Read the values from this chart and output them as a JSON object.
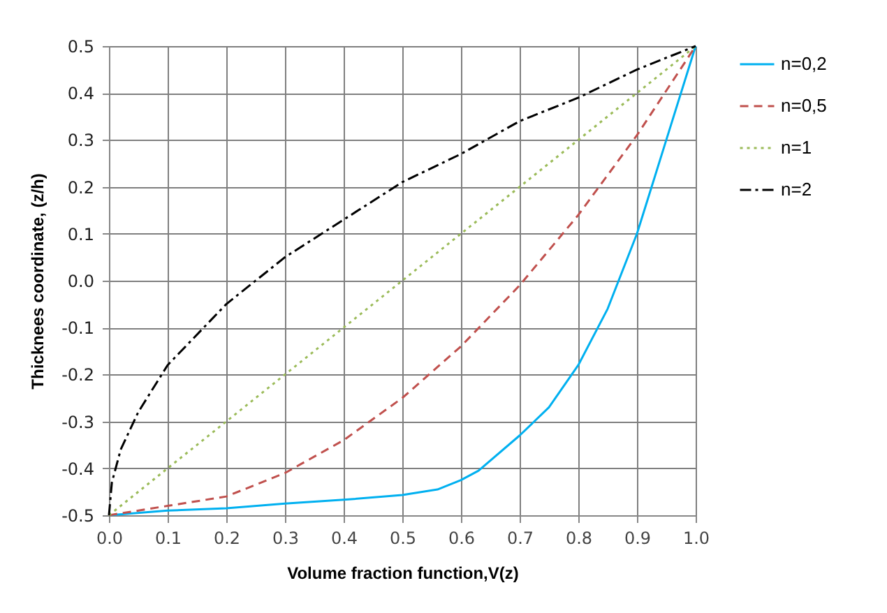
{
  "chart_data": {
    "type": "line",
    "xlabel": "Volume fraction function,V(z)",
    "ylabel": "Thicknees coordinate, (z/h)",
    "xlim": [
      0,
      1
    ],
    "ylim": [
      -0.5,
      0.5
    ],
    "xticks": [
      {
        "value": 0,
        "label": "0.0"
      },
      0.1,
      0.2,
      0.3,
      0.4,
      0.5,
      0.6,
      0.7,
      0.8,
      0.9,
      {
        "value": 1,
        "label": "1.0"
      }
    ],
    "yticks": [
      -0.5,
      -0.4,
      -0.3,
      -0.2,
      -0.1,
      {
        "value": 0,
        "label": "0.0"
      },
      0.1,
      0.2,
      0.3,
      0.4,
      0.5
    ],
    "grid": true,
    "legend": "right",
    "marker": "none",
    "series": [
      {
        "name": "n=0,2",
        "color": "#00b0f0",
        "line_style": "solid",
        "x": [
          0,
          0.1,
          0.2,
          0.3,
          0.4,
          0.5,
          0.56,
          0.6,
          0.63,
          0.7,
          0.75,
          0.8,
          0.85,
          0.9,
          0.95,
          1.0
        ],
        "values": [
          -0.5,
          -0.49,
          -0.485,
          -0.475,
          -0.467,
          -0.457,
          -0.445,
          -0.425,
          -0.405,
          -0.33,
          -0.27,
          -0.18,
          -0.06,
          0.1,
          0.3,
          0.5
        ]
      },
      {
        "name": "n=0,5",
        "color": "#c0504d",
        "line_style": "dashed",
        "x": [
          0,
          0.1,
          0.2,
          0.3,
          0.4,
          0.5,
          0.6,
          0.7,
          0.8,
          0.9,
          1.0
        ],
        "values": [
          -0.5,
          -0.48,
          -0.46,
          -0.41,
          -0.34,
          -0.25,
          -0.14,
          -0.01,
          0.14,
          0.31,
          0.5
        ]
      },
      {
        "name": "n=1",
        "color": "#9bbb59",
        "line_style": "dotted",
        "x": [
          0,
          0.1,
          0.2,
          0.3,
          0.4,
          0.5,
          0.6,
          0.7,
          0.8,
          0.9,
          1.0
        ],
        "values": [
          -0.5,
          -0.4,
          -0.3,
          -0.2,
          -0.1,
          0,
          0.1,
          0.2,
          0.3,
          0.4,
          0.5
        ]
      },
      {
        "name": "n=2",
        "color": "#000000",
        "line_style": "dashdot",
        "x": [
          0,
          0.005,
          0.02,
          0.05,
          0.1,
          0.2,
          0.3,
          0.4,
          0.5,
          0.6,
          0.7,
          0.8,
          0.9,
          1.0
        ],
        "values": [
          -0.5,
          -0.43,
          -0.36,
          -0.28,
          -0.18,
          -0.05,
          0.05,
          0.13,
          0.21,
          0.27,
          0.34,
          0.39,
          0.45,
          0.5
        ]
      }
    ]
  }
}
